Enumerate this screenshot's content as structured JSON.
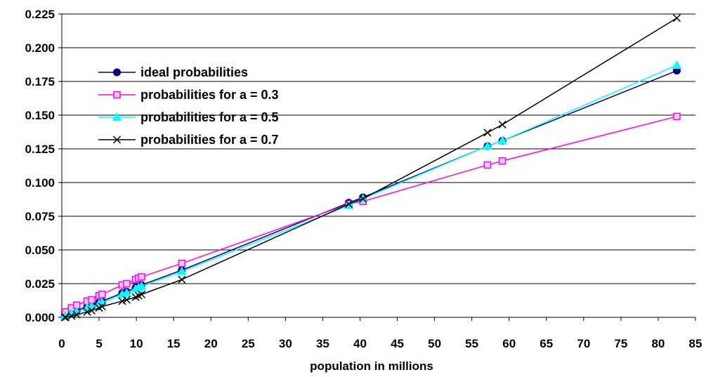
{
  "chart_data": {
    "type": "line",
    "title": "",
    "xlabel": "population in millions",
    "ylabel": "",
    "xlim": [
      0,
      85
    ],
    "ylim": [
      0,
      0.225
    ],
    "x_ticks": [
      "0",
      "5",
      "10",
      "15",
      "20",
      "25",
      "30",
      "35",
      "40",
      "45",
      "50",
      "55",
      "60",
      "65",
      "70",
      "75",
      "80",
      "85"
    ],
    "y_ticks": [
      "0.000",
      "0.025",
      "0.050",
      "0.075",
      "0.100",
      "0.125",
      "0.150",
      "0.175",
      "0.200",
      "0.225"
    ],
    "grid": "horizontal",
    "legend_position": "top-left",
    "x": [
      0.4,
      0.5,
      1.3,
      2.0,
      3.4,
      4.0,
      5.0,
      5.4,
      8.1,
      8.7,
      9.9,
      10.3,
      10.7,
      16.1,
      38.5,
      40.4,
      57.1,
      59.1,
      82.5
    ],
    "series": [
      {
        "name": "ideal probabilities",
        "color": "#000080",
        "marker": "circle",
        "values": [
          0.001,
          0.001,
          0.003,
          0.005,
          0.008,
          0.009,
          0.011,
          0.012,
          0.018,
          0.019,
          0.022,
          0.023,
          0.024,
          0.035,
          0.085,
          0.089,
          0.127,
          0.131,
          0.183
        ]
      },
      {
        "name": "probabilities for a = 0.3",
        "color": "#ff00ff",
        "marker": "square",
        "values": [
          0.003,
          0.004,
          0.007,
          0.009,
          0.012,
          0.013,
          0.016,
          0.017,
          0.024,
          0.025,
          0.028,
          0.029,
          0.03,
          0.04,
          0.084,
          0.086,
          0.113,
          0.116,
          0.149
        ]
      },
      {
        "name": "probabilities for a = 0.5",
        "color": "#00ffff",
        "marker": "triangle",
        "values": [
          0.001,
          0.001,
          0.003,
          0.004,
          0.007,
          0.008,
          0.01,
          0.011,
          0.017,
          0.018,
          0.021,
          0.022,
          0.023,
          0.034,
          0.083,
          0.088,
          0.127,
          0.131,
          0.187
        ]
      },
      {
        "name": "probabilities for a = 0.7",
        "color": "#000000",
        "marker": "x",
        "values": [
          0.0,
          0.0,
          0.001,
          0.002,
          0.004,
          0.005,
          0.007,
          0.008,
          0.012,
          0.013,
          0.015,
          0.016,
          0.017,
          0.028,
          0.084,
          0.088,
          0.137,
          0.143,
          0.222
        ]
      }
    ]
  }
}
